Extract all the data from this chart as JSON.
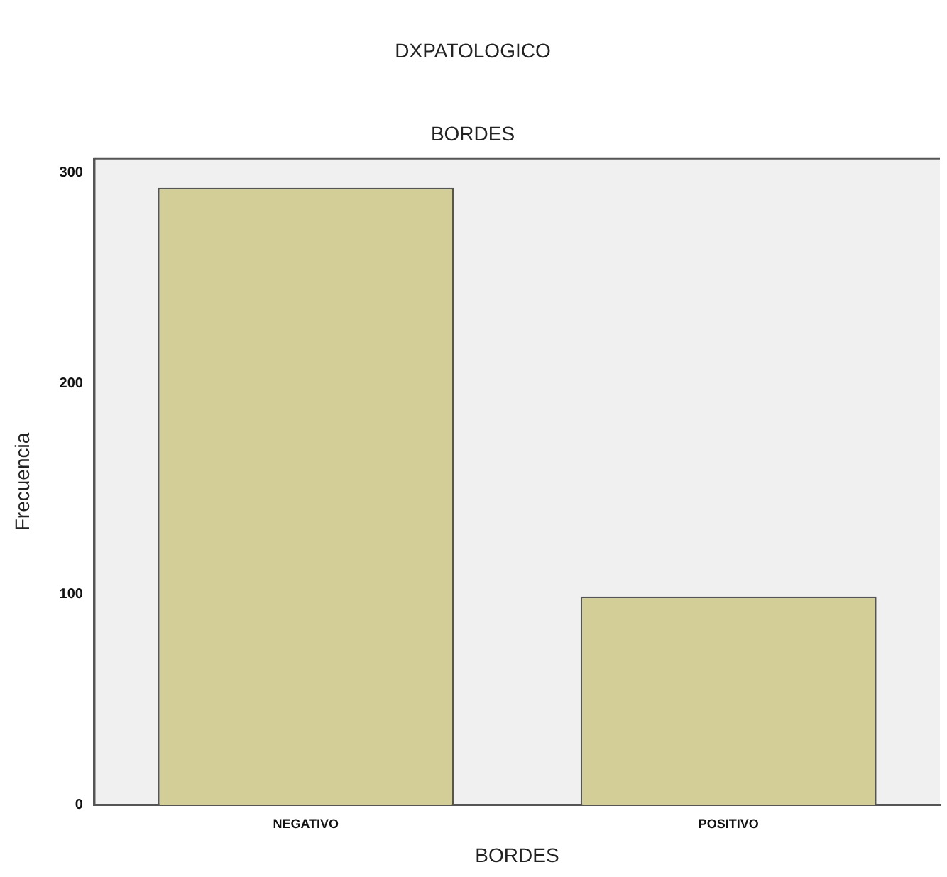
{
  "chart_data": {
    "type": "bar",
    "title": "DXPATOLOGICO",
    "subtitle": "BORDES",
    "xlabel": "BORDES",
    "ylabel": "Frecuencia",
    "categories": [
      "NEGATIVO",
      "POSITIVO"
    ],
    "values": [
      293,
      99
    ],
    "color": "#d3ce98",
    "ylim": [
      0,
      307
    ],
    "yticks": [
      0,
      100,
      200,
      300
    ],
    "grid": false,
    "legend": false
  }
}
